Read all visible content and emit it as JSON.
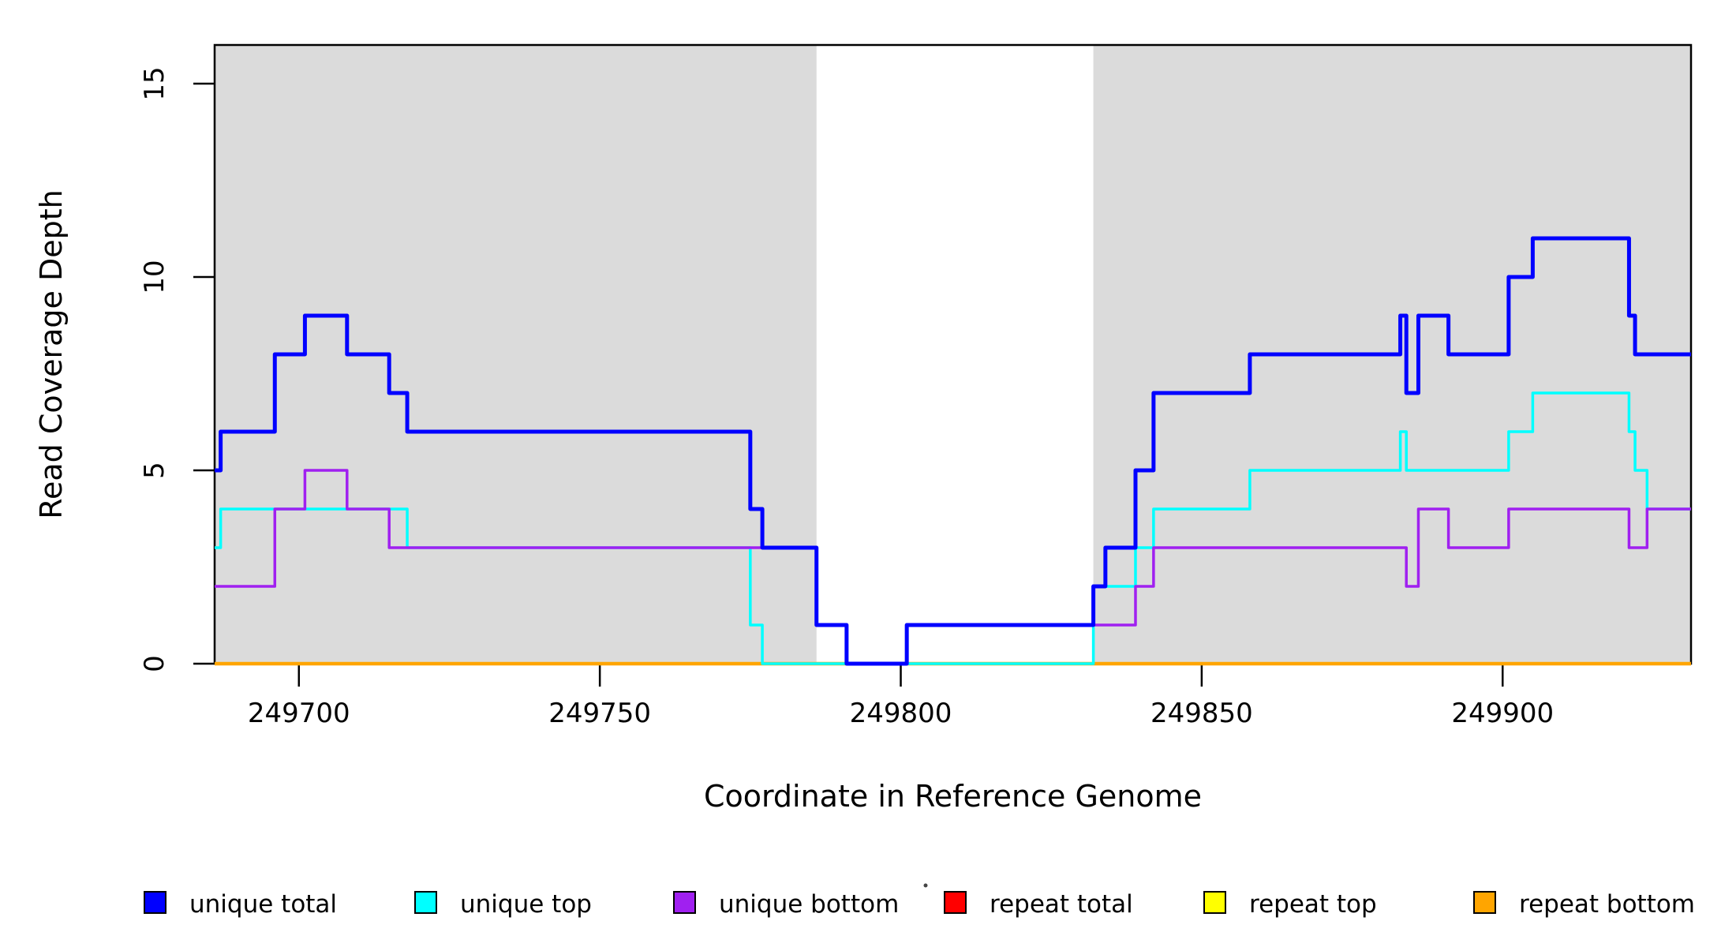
{
  "figure": {
    "background": "#ffffff",
    "plot_background_shaded": "#DBDBDB",
    "box_color": "#000000"
  },
  "chart_data": {
    "type": "line",
    "subtype": "step-after read-coverage plot (R base graphics style)",
    "title": "",
    "xlabel": "Coordinate in Reference Genome",
    "ylabel": "Read Coverage Depth",
    "xlim": [
      249686,
      249931.3
    ],
    "ylim": [
      0,
      16
    ],
    "x_ticks": [
      249700,
      249750,
      249800,
      249850,
      249900
    ],
    "y_ticks": [
      0,
      5,
      10,
      15
    ],
    "grid": false,
    "legend_position": "bottom-horizontal",
    "shaded_regions": [
      {
        "name": "shaded-region-left",
        "x0": 249686,
        "x1": 249786,
        "color": "#DBDBDB"
      },
      {
        "name": "shaded-region-right",
        "x0": 249832,
        "x1": 249931.3,
        "color": "#DBDBDB"
      }
    ],
    "series": [
      {
        "name": "repeat total",
        "color": "#FF0000",
        "linewidth": 3,
        "steps": [
          [
            249686,
            0
          ]
        ]
      },
      {
        "name": "repeat top",
        "color": "#FFFF00",
        "linewidth": 3,
        "steps": [
          [
            249686,
            0
          ]
        ]
      },
      {
        "name": "repeat bottom",
        "color": "#FFA500",
        "linewidth": 4.5,
        "steps": [
          [
            249686,
            0
          ]
        ]
      },
      {
        "name": "unique top",
        "color": "#00FFFF",
        "linewidth": 3.5,
        "steps": [
          [
            249686,
            3
          ],
          [
            249687,
            4
          ],
          [
            249718,
            3
          ],
          [
            249775,
            1
          ],
          [
            249777,
            0
          ],
          [
            249832,
            2
          ],
          [
            249839,
            3
          ],
          [
            249842,
            4
          ],
          [
            249858,
            5
          ],
          [
            249883,
            6
          ],
          [
            249884,
            5
          ],
          [
            249901,
            6
          ],
          [
            249905,
            7
          ],
          [
            249921,
            6
          ],
          [
            249922,
            5
          ],
          [
            249924,
            4
          ]
        ]
      },
      {
        "name": "unique bottom",
        "color": "#A020F0",
        "linewidth": 3.5,
        "steps": [
          [
            249686,
            2
          ],
          [
            249696,
            4
          ],
          [
            249701,
            5
          ],
          [
            249708,
            4
          ],
          [
            249715,
            3
          ],
          [
            249786,
            1
          ],
          [
            249791,
            0
          ],
          [
            249801,
            1
          ],
          [
            249839,
            2
          ],
          [
            249842,
            3
          ],
          [
            249884,
            2
          ],
          [
            249886,
            4
          ],
          [
            249891,
            3
          ],
          [
            249901,
            4
          ],
          [
            249921,
            3
          ],
          [
            249924,
            4
          ]
        ]
      },
      {
        "name": "unique total",
        "color": "#0000FF",
        "linewidth": 5,
        "steps": [
          [
            249686,
            5
          ],
          [
            249687,
            6
          ],
          [
            249696,
            8
          ],
          [
            249701,
            9
          ],
          [
            249708,
            8
          ],
          [
            249715,
            7
          ],
          [
            249718,
            6
          ],
          [
            249775,
            4
          ],
          [
            249777,
            3
          ],
          [
            249786,
            1
          ],
          [
            249791,
            0
          ],
          [
            249801,
            1
          ],
          [
            249832,
            2
          ],
          [
            249834,
            3
          ],
          [
            249839,
            5
          ],
          [
            249842,
            7
          ],
          [
            249858,
            8
          ],
          [
            249883,
            9
          ],
          [
            249884,
            7
          ],
          [
            249886,
            9
          ],
          [
            249891,
            8
          ],
          [
            249901,
            10
          ],
          [
            249905,
            11
          ],
          [
            249921,
            9
          ],
          [
            249922,
            8
          ]
        ]
      }
    ],
    "legend": [
      {
        "label": "unique total",
        "color": "#0000FF"
      },
      {
        "label": "unique top",
        "color": "#00FFFF"
      },
      {
        "label": "unique bottom",
        "color": "#A020F0"
      },
      {
        "label": "repeat total",
        "color": "#FF0000"
      },
      {
        "label": "repeat top",
        "color": "#FFFF00"
      },
      {
        "label": "repeat bottom",
        "color": "#FFA500"
      }
    ]
  }
}
